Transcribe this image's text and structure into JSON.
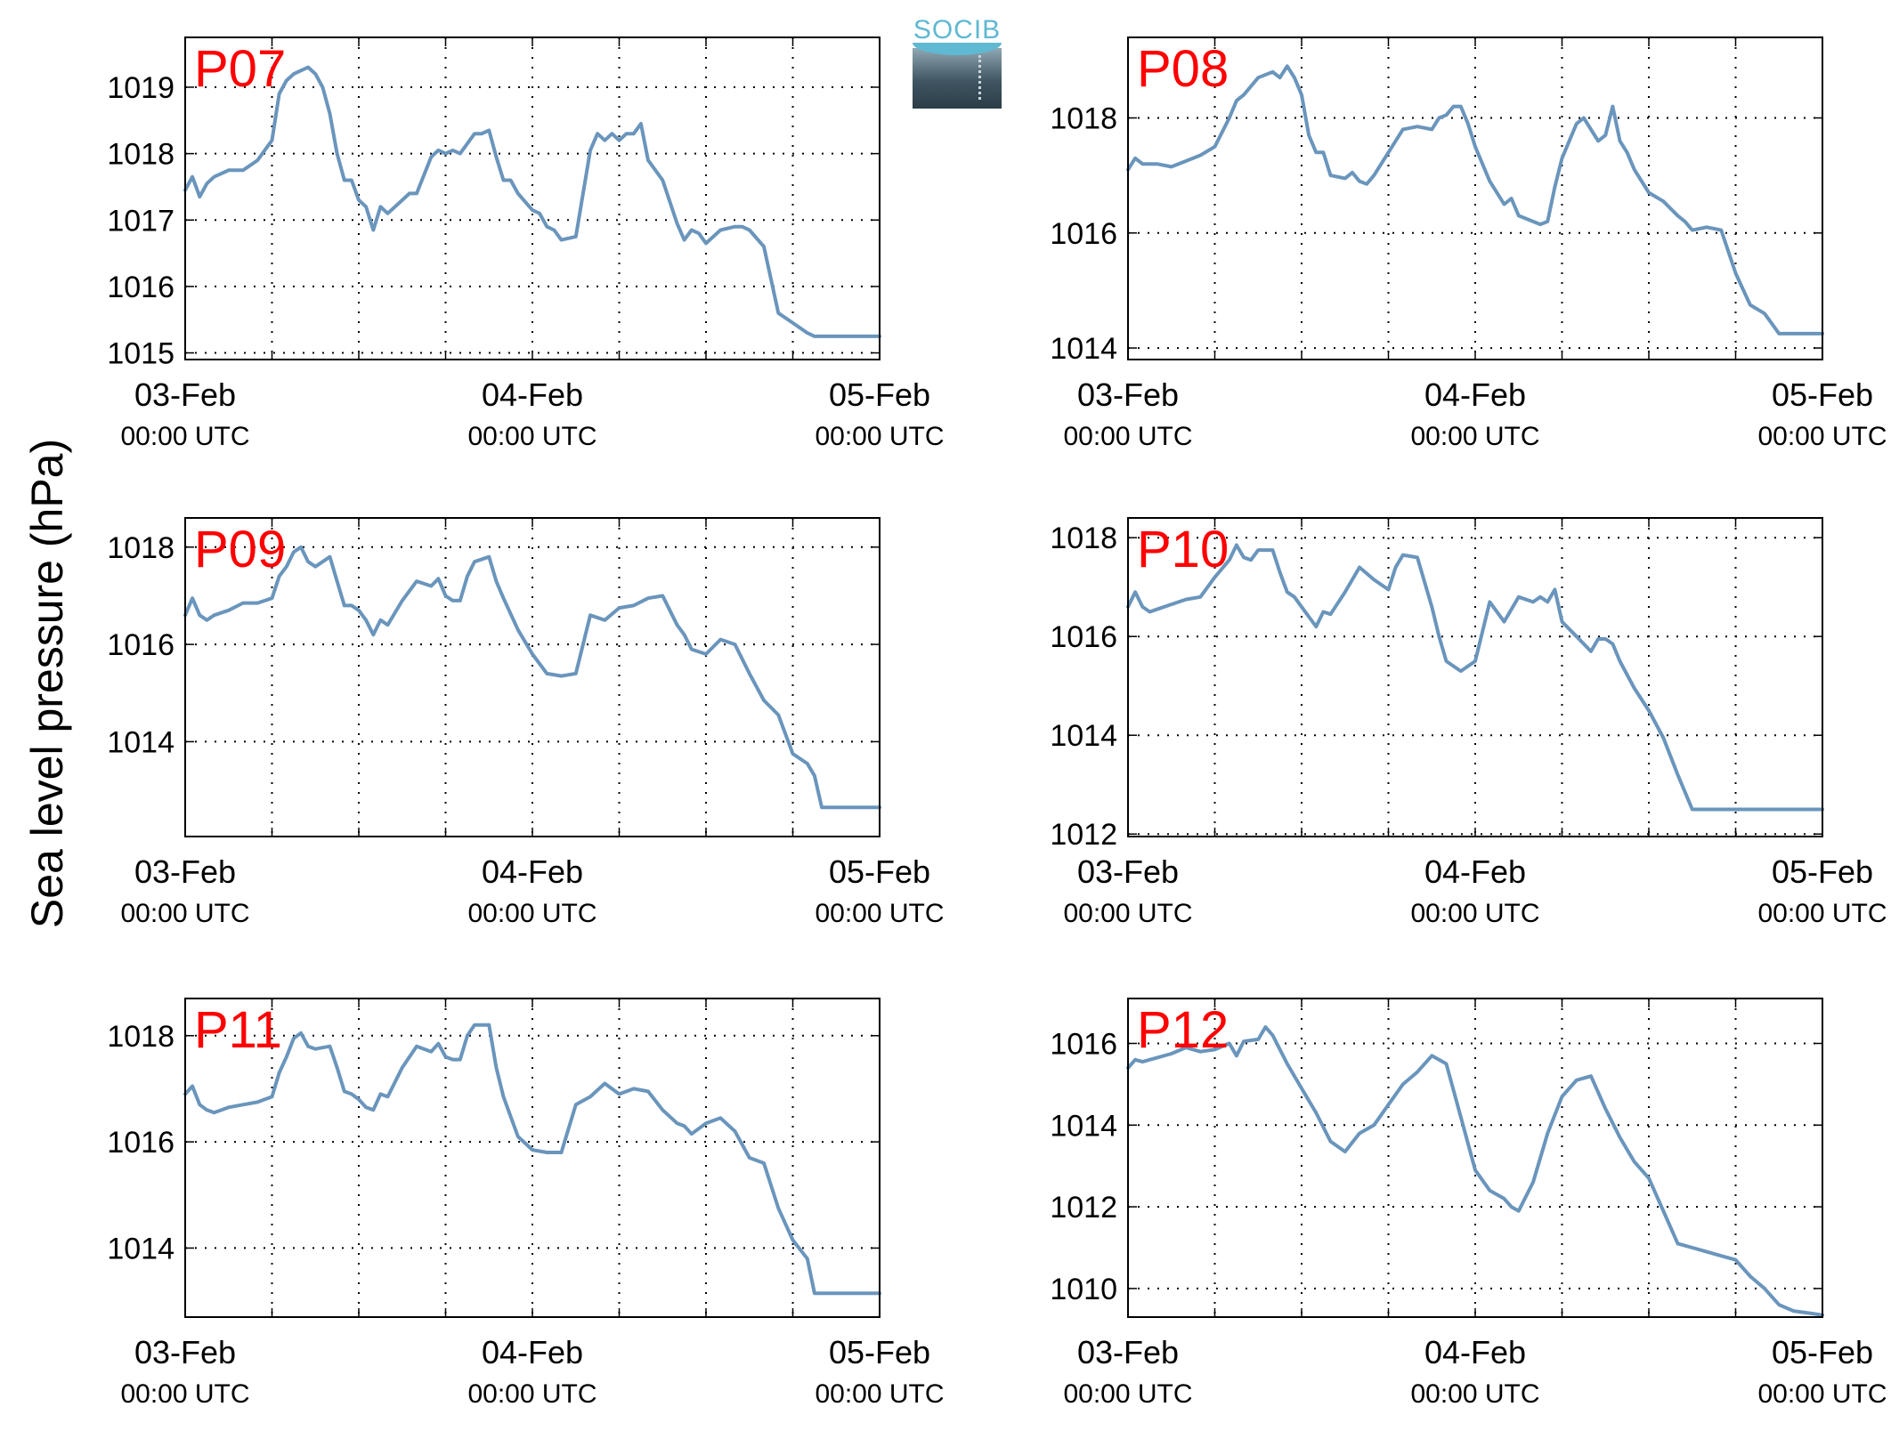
{
  "figure": {
    "ylabel": "Sea level pressure (hPa)",
    "line_color": "#6a95bc",
    "title_color": "#ff0000",
    "logo_text": "SOCIB"
  },
  "chart_data": [
    {
      "type": "line",
      "title": "P07",
      "x_tick_labels": [
        [
          "03-Feb",
          "00:00 UTC"
        ],
        [
          "04-Feb",
          "00:00 UTC"
        ],
        [
          "05-Feb",
          "00:00 UTC"
        ]
      ],
      "x_range_hours": [
        0,
        48
      ],
      "ylim": [
        1014.9,
        1019.75
      ],
      "yticks": [
        1015,
        1016,
        1017,
        1018,
        1019
      ],
      "grid": true,
      "x_hours": [
        0,
        0.5,
        1,
        1.5,
        2,
        3,
        4,
        5,
        6,
        6.5,
        7,
        7.5,
        8,
        8.5,
        9,
        9.5,
        10,
        10.5,
        11,
        11.5,
        12,
        12.5,
        13,
        13.5,
        14,
        15,
        15.5,
        16,
        17,
        17.5,
        18,
        18.5,
        19,
        20,
        20.5,
        21,
        21.5,
        22,
        22.5,
        23,
        24,
        24.5,
        25,
        25.5,
        26,
        27,
        28,
        28.5,
        29,
        29.5,
        30,
        30.5,
        31,
        31.5,
        32,
        33,
        34,
        34.5,
        35,
        35.5,
        36,
        37,
        38,
        38.5,
        39,
        40,
        41,
        42,
        43,
        43.5,
        44,
        44.5,
        45,
        45.5,
        46,
        47,
        48
      ],
      "values": [
        1017.45,
        1017.65,
        1017.35,
        1017.55,
        1017.65,
        1017.75,
        1017.75,
        1017.9,
        1018.2,
        1018.9,
        1019.1,
        1019.2,
        1019.25,
        1019.3,
        1019.2,
        1019.0,
        1018.6,
        1018.0,
        1017.6,
        1017.6,
        1017.3,
        1017.2,
        1016.85,
        1017.2,
        1017.1,
        1017.3,
        1017.4,
        1017.4,
        1017.95,
        1018.05,
        1018.0,
        1018.05,
        1018.0,
        1018.3,
        1018.3,
        1018.35,
        1017.95,
        1017.6,
        1017.6,
        1017.4,
        1017.15,
        1017.1,
        1016.9,
        1016.85,
        1016.7,
        1016.75,
        1018.05,
        1018.3,
        1018.2,
        1018.3,
        1018.2,
        1018.3,
        1018.3,
        1018.45,
        1017.9,
        1017.6,
        1016.95,
        1016.7,
        1016.85,
        1016.8,
        1016.65,
        1016.85,
        1016.9,
        1016.9,
        1016.85,
        1016.6,
        1015.6,
        1015.45,
        1015.3,
        1015.25,
        1015.25,
        1015.25,
        1015.25,
        1015.25,
        1015.25,
        1015.25,
        1015.25
      ]
    },
    {
      "type": "line",
      "title": "P08",
      "x_tick_labels": [
        [
          "03-Feb",
          "00:00 UTC"
        ],
        [
          "04-Feb",
          "00:00 UTC"
        ],
        [
          "05-Feb",
          "00:00 UTC"
        ]
      ],
      "x_range_hours": [
        0,
        48
      ],
      "ylim": [
        1013.8,
        1019.4
      ],
      "yticks": [
        1014,
        1016,
        1018
      ],
      "grid": true,
      "x_hours": [
        0,
        0.5,
        1,
        2,
        3,
        4,
        5,
        6,
        7,
        7.5,
        8,
        9,
        10,
        10.5,
        11,
        11.5,
        12,
        12.5,
        13,
        13.5,
        14,
        15,
        15.5,
        16,
        16.5,
        17,
        18,
        18.5,
        19,
        20,
        21,
        21.5,
        22,
        22.5,
        23,
        23.5,
        24,
        25,
        26,
        26.5,
        27,
        28,
        28.5,
        29,
        29.5,
        30,
        31,
        31.5,
        32,
        32.5,
        33,
        33.5,
        34,
        34.5,
        35,
        36,
        37,
        38,
        38.5,
        39,
        40,
        41,
        42,
        43,
        44,
        45,
        45.5,
        46,
        46.5,
        47,
        48
      ],
      "values": [
        1017.1,
        1017.3,
        1017.2,
        1017.2,
        1017.15,
        1017.25,
        1017.35,
        1017.5,
        1018.0,
        1018.3,
        1018.4,
        1018.7,
        1018.8,
        1018.7,
        1018.9,
        1018.7,
        1018.4,
        1017.7,
        1017.4,
        1017.4,
        1017.0,
        1016.95,
        1017.05,
        1016.9,
        1016.85,
        1017.0,
        1017.4,
        1017.6,
        1017.8,
        1017.85,
        1017.8,
        1018.0,
        1018.05,
        1018.2,
        1018.2,
        1017.9,
        1017.5,
        1016.9,
        1016.5,
        1016.6,
        1016.3,
        1016.2,
        1016.15,
        1016.2,
        1016.8,
        1017.3,
        1017.9,
        1018.0,
        1017.8,
        1017.6,
        1017.7,
        1018.2,
        1017.6,
        1017.4,
        1017.1,
        1016.7,
        1016.55,
        1016.3,
        1016.2,
        1016.05,
        1016.1,
        1016.05,
        1015.3,
        1014.75,
        1014.6,
        1014.25,
        1014.25,
        1014.25,
        1014.25,
        1014.25,
        1014.25
      ]
    },
    {
      "type": "line",
      "title": "P09",
      "x_tick_labels": [
        [
          "03-Feb",
          "00:00 UTC"
        ],
        [
          "04-Feb",
          "00:00 UTC"
        ],
        [
          "05-Feb",
          "00:00 UTC"
        ]
      ],
      "x_range_hours": [
        0,
        48
      ],
      "ylim": [
        1012.05,
        1018.6
      ],
      "yticks": [
        1014,
        1016,
        1018
      ],
      "grid": true,
      "x_hours": [
        0,
        0.5,
        1,
        1.5,
        2,
        3,
        4,
        5,
        6,
        6.5,
        7,
        7.5,
        8,
        8.5,
        9,
        10,
        10.5,
        11,
        11.5,
        12,
        12.5,
        13,
        13.5,
        14,
        15,
        16,
        17,
        17.5,
        18,
        18.5,
        19,
        19.5,
        20,
        21,
        21.5,
        22,
        23,
        24,
        25,
        26,
        27,
        28,
        29,
        30,
        31,
        32,
        33,
        34,
        34.5,
        35,
        36,
        37,
        38,
        39,
        40,
        41,
        42,
        43,
        43.5,
        44,
        44.5,
        45,
        45.5,
        46,
        46.5,
        47,
        48
      ],
      "values": [
        1016.6,
        1016.95,
        1016.6,
        1016.5,
        1016.6,
        1016.7,
        1016.85,
        1016.85,
        1016.95,
        1017.4,
        1017.6,
        1017.9,
        1018.0,
        1017.7,
        1017.6,
        1017.8,
        1017.3,
        1016.8,
        1016.8,
        1016.7,
        1016.5,
        1016.2,
        1016.5,
        1016.4,
        1016.9,
        1017.3,
        1017.2,
        1017.35,
        1017.0,
        1016.9,
        1016.9,
        1017.4,
        1017.7,
        1017.8,
        1017.3,
        1016.95,
        1016.3,
        1015.8,
        1015.4,
        1015.35,
        1015.4,
        1016.6,
        1016.5,
        1016.75,
        1016.8,
        1016.95,
        1017.0,
        1016.4,
        1016.2,
        1015.9,
        1015.8,
        1016.1,
        1016.0,
        1015.4,
        1014.85,
        1014.55,
        1013.75,
        1013.55,
        1013.3,
        1012.65,
        1012.65,
        1012.65,
        1012.65,
        1012.65,
        1012.65,
        1012.65,
        1012.65
      ]
    },
    {
      "type": "line",
      "title": "P10",
      "x_tick_labels": [
        [
          "03-Feb",
          "00:00 UTC"
        ],
        [
          "04-Feb",
          "00:00 UTC"
        ],
        [
          "05-Feb",
          "00:00 UTC"
        ]
      ],
      "x_range_hours": [
        0,
        48
      ],
      "ylim": [
        1011.95,
        1018.4
      ],
      "yticks": [
        1012,
        1014,
        1016,
        1018
      ],
      "grid": true,
      "x_hours": [
        0,
        0.5,
        1,
        1.5,
        2,
        3,
        4,
        5,
        6,
        7,
        7.5,
        8,
        8.5,
        9,
        10,
        10.5,
        11,
        11.5,
        12,
        12.5,
        13,
        13.5,
        14,
        15,
        16,
        17,
        18,
        18.5,
        19,
        20,
        21,
        21.5,
        22,
        23,
        24,
        25,
        26,
        27,
        28,
        28.5,
        29,
        29.5,
        30,
        31,
        32,
        32.5,
        33,
        33.5,
        34,
        35,
        36,
        37,
        38,
        39,
        40,
        41,
        42,
        43,
        43.5,
        44,
        44.5,
        45,
        45.5,
        46,
        46.5,
        47,
        48
      ],
      "values": [
        1016.6,
        1016.9,
        1016.6,
        1016.5,
        1016.55,
        1016.65,
        1016.75,
        1016.8,
        1017.2,
        1017.55,
        1017.85,
        1017.6,
        1017.55,
        1017.75,
        1017.75,
        1017.3,
        1016.9,
        1016.8,
        1016.6,
        1016.4,
        1016.2,
        1016.5,
        1016.45,
        1016.9,
        1017.4,
        1017.15,
        1016.95,
        1017.4,
        1017.65,
        1017.6,
        1016.6,
        1016.0,
        1015.5,
        1015.3,
        1015.5,
        1016.7,
        1016.3,
        1016.8,
        1016.7,
        1016.8,
        1016.7,
        1016.95,
        1016.3,
        1016.0,
        1015.7,
        1015.95,
        1015.95,
        1015.85,
        1015.5,
        1014.95,
        1014.5,
        1013.95,
        1013.2,
        1012.5,
        1012.5,
        1012.5,
        1012.5,
        1012.5,
        1012.5,
        1012.5,
        1012.5,
        1012.5,
        1012.5,
        1012.5,
        1012.5,
        1012.5,
        1012.5
      ]
    },
    {
      "type": "line",
      "title": "P11",
      "x_tick_labels": [
        [
          "03-Feb",
          "00:00 UTC"
        ],
        [
          "04-Feb",
          "00:00 UTC"
        ],
        [
          "05-Feb",
          "00:00 UTC"
        ]
      ],
      "x_range_hours": [
        0,
        48
      ],
      "ylim": [
        1012.7,
        1018.7
      ],
      "yticks": [
        1014,
        1016,
        1018
      ],
      "grid": true,
      "x_hours": [
        0,
        0.5,
        1,
        1.5,
        2,
        3,
        4,
        5,
        6,
        6.5,
        7,
        7.5,
        8,
        8.5,
        9,
        10,
        10.5,
        11,
        11.5,
        12,
        12.5,
        13,
        13.5,
        14,
        15,
        16,
        17,
        17.5,
        18,
        18.5,
        19,
        19.5,
        20,
        21,
        21.5,
        22,
        23,
        24,
        25,
        26,
        27,
        28,
        29,
        30,
        31,
        32,
        33,
        34,
        34.5,
        35,
        36,
        37,
        38,
        39,
        40,
        41,
        42,
        43,
        43.5,
        44,
        44.5,
        45,
        45.5,
        46,
        46.5,
        47,
        48
      ],
      "values": [
        1016.9,
        1017.05,
        1016.7,
        1016.6,
        1016.55,
        1016.65,
        1016.7,
        1016.75,
        1016.85,
        1017.3,
        1017.6,
        1017.95,
        1018.05,
        1017.8,
        1017.75,
        1017.8,
        1017.4,
        1016.95,
        1016.9,
        1016.8,
        1016.65,
        1016.6,
        1016.9,
        1016.85,
        1017.4,
        1017.8,
        1017.7,
        1017.85,
        1017.6,
        1017.55,
        1017.55,
        1018.0,
        1018.2,
        1018.2,
        1017.4,
        1016.85,
        1016.1,
        1015.85,
        1015.8,
        1015.8,
        1016.7,
        1016.85,
        1017.1,
        1016.9,
        1017.0,
        1016.95,
        1016.6,
        1016.35,
        1016.3,
        1016.15,
        1016.35,
        1016.45,
        1016.2,
        1015.7,
        1015.6,
        1014.75,
        1014.15,
        1013.8,
        1013.15,
        1013.15,
        1013.15,
        1013.15,
        1013.15,
        1013.15,
        1013.15,
        1013.15,
        1013.15
      ]
    },
    {
      "type": "line",
      "title": "P12",
      "x_tick_labels": [
        [
          "03-Feb",
          "00:00 UTC"
        ],
        [
          "04-Feb",
          "00:00 UTC"
        ],
        [
          "05-Feb",
          "00:00 UTC"
        ]
      ],
      "x_range_hours": [
        0,
        48
      ],
      "ylim": [
        1009.3,
        1017.1
      ],
      "yticks": [
        1010,
        1012,
        1014,
        1016
      ],
      "grid": true,
      "x_hours": [
        0,
        0.5,
        1,
        2,
        3,
        4,
        5,
        6,
        7,
        7.5,
        8,
        9,
        9.5,
        10,
        11,
        12,
        13,
        14,
        15,
        16,
        17,
        18,
        19,
        20,
        21,
        22,
        23,
        24,
        25,
        26,
        26.5,
        27,
        28,
        29,
        30,
        31,
        32,
        33,
        34,
        35,
        36,
        37,
        38,
        39,
        40,
        41,
        42,
        43,
        44,
        45,
        46,
        47,
        48
      ],
      "values": [
        1015.4,
        1015.6,
        1015.55,
        1015.65,
        1015.75,
        1015.9,
        1015.8,
        1015.85,
        1016.0,
        1015.7,
        1016.05,
        1016.1,
        1016.4,
        1016.2,
        1015.5,
        1014.9,
        1014.3,
        1013.6,
        1013.35,
        1013.8,
        1014.0,
        1014.5,
        1015.0,
        1015.3,
        1015.7,
        1015.5,
        1014.2,
        1012.9,
        1012.4,
        1012.2,
        1012.0,
        1011.9,
        1012.6,
        1013.8,
        1014.7,
        1015.1,
        1015.2,
        1014.4,
        1013.7,
        1013.1,
        1012.7,
        1011.9,
        1011.1,
        1011.0,
        1010.9,
        1010.8,
        1010.7,
        1010.3,
        1010.0,
        1009.6,
        1009.45,
        1009.4,
        1009.35
      ]
    }
  ]
}
